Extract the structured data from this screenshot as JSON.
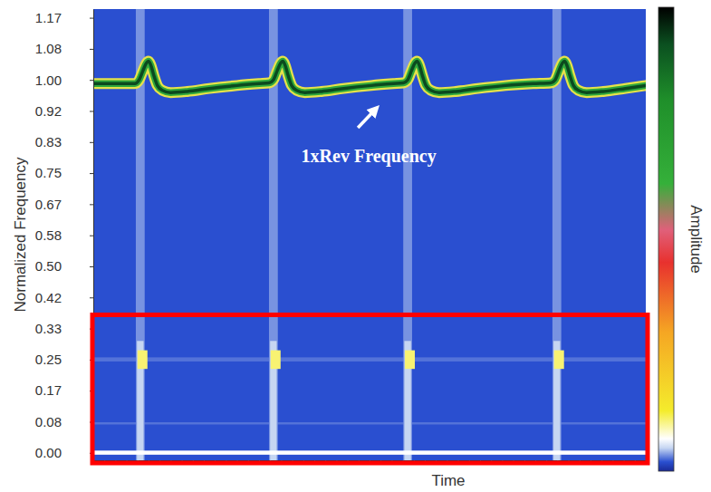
{
  "chart_data": {
    "type": "heatmap",
    "x_label": "Time",
    "y_label": "Normalized Frequency",
    "color_label": "Amplitude",
    "tick_labels": "y",
    "xlim": [
      0,
      100
    ],
    "ylim": [
      -0.02,
      1.19
    ],
    "xticks": [
      0,
      2,
      4,
      6,
      8,
      10,
      12,
      14,
      16,
      18,
      20,
      22,
      24,
      26,
      28,
      30,
      32,
      34,
      36,
      38,
      40,
      42,
      44,
      46,
      48,
      50,
      52,
      54,
      56,
      58,
      60,
      62,
      64,
      66,
      68,
      70,
      72,
      74,
      76,
      78,
      80,
      82,
      84,
      86,
      88,
      90,
      92,
      94,
      96,
      98,
      100
    ],
    "yticks": [
      {
        "value": 0,
        "label": "0.00"
      },
      {
        "value": 0.0833,
        "label": "0.08"
      },
      {
        "value": 0.1667,
        "label": "0.17"
      },
      0.25,
      {
        "value": 0.3333,
        "label": "0.33"
      },
      {
        "value": 0.4167,
        "label": "0.42"
      },
      {
        "value": 0.5,
        "label": "0.50"
      },
      {
        "value": 0.5833,
        "label": "0.58"
      },
      {
        "value": 0.6667,
        "label": "0.67"
      },
      0.75,
      {
        "value": 0.8333,
        "label": "0.83"
      },
      {
        "value": 0.9167,
        "label": "0.92"
      },
      {
        "value": 1,
        "label": "1.00"
      },
      {
        "value": 1.0833,
        "label": "1.08"
      },
      {
        "value": 1.1667,
        "label": "1.17"
      }
    ],
    "color_range": [
      0,
      1
    ],
    "cells": [
      {
        "time": [
          0,
          100
        ],
        "frequency": [
          0.245,
          0.256
        ],
        "amplitude": 0.028
      },
      {
        "time": [
          0,
          100
        ],
        "frequency": [
          0.076,
          0.082
        ],
        "amplitude": 0.028
      },
      {
        "time": [
          7.7,
          9.3
        ],
        "frequency": [
          -0.02,
          1.19
        ],
        "amplitude": 0.035
      },
      {
        "time": [
          31.8,
          33.4
        ],
        "frequency": [
          -0.02,
          1.19
        ],
        "amplitude": 0.035
      },
      {
        "time": [
          56.1,
          57.7
        ],
        "frequency": [
          -0.02,
          1.19
        ],
        "amplitude": 0.035
      },
      {
        "time": [
          83.1,
          84.7
        ],
        "frequency": [
          -0.02,
          1.19
        ],
        "amplitude": 0.035
      },
      {
        "time": [
          7.9,
          9.1
        ],
        "frequency": [
          -0.02,
          0.3
        ],
        "amplitude": 0.05
      },
      {
        "time": [
          32,
          33.2
        ],
        "frequency": [
          -0.02,
          0.3
        ],
        "amplitude": 0.05
      },
      {
        "time": [
          56.3,
          57.5
        ],
        "frequency": [
          -0.02,
          0.3
        ],
        "amplitude": 0.05
      },
      {
        "time": [
          83.3,
          84.5
        ],
        "frequency": [
          -0.02,
          0.3
        ],
        "amplitude": 0.05
      },
      {
        "time": [
          8,
          9.8
        ],
        "frequency": [
          0.225,
          0.275
        ],
        "amplitude": 0.11
      },
      {
        "time": [
          32.1,
          33.9
        ],
        "frequency": [
          0.225,
          0.275
        ],
        "amplitude": 0.11
      },
      {
        "time": [
          56.4,
          58.2
        ],
        "frequency": [
          0.225,
          0.275
        ],
        "amplitude": 0.11
      },
      {
        "time": [
          83.4,
          85.2
        ],
        "frequency": [
          0.225,
          0.275
        ],
        "amplitude": 0.11
      },
      {
        "time": [
          0,
          100
        ],
        "frequency": [
          -0.005,
          0.006
        ],
        "amplitude": 0.07
      }
    ],
    "series": [
      {
        "type": "line",
        "color": "#0b4a1e",
        "x": [
          0,
          7.5,
          8.3,
          9,
          9.6,
          10,
          10.4,
          11,
          11.6,
          12.5,
          14,
          17,
          21,
          26,
          30,
          31.8,
          32.6,
          33.3,
          33.9,
          34.3,
          34.7,
          35.3,
          35.9,
          36.8,
          38.3,
          41.3,
          45.3,
          50.3,
          54.3,
          56.1,
          56.9,
          57.6,
          58.2,
          58.6,
          59,
          59.6,
          60.2,
          61.1,
          62.6,
          65.6,
          69.6,
          74.6,
          79.6,
          82.8,
          83.6,
          84.3,
          84.9,
          85.3,
          85.7,
          86.3,
          86.9,
          87.8,
          89.3,
          92.3,
          96.3,
          100
        ],
        "values": [
          0.99,
          0.99,
          1.0,
          1.025,
          1.045,
          1.05,
          1.04,
          1.01,
          0.985,
          0.972,
          0.966,
          0.969,
          0.977,
          0.985,
          0.99,
          0.992,
          1.0,
          1.025,
          1.045,
          1.05,
          1.04,
          1.01,
          0.985,
          0.972,
          0.966,
          0.969,
          0.977,
          0.985,
          0.99,
          0.992,
          1.0,
          1.025,
          1.045,
          1.05,
          1.04,
          1.01,
          0.985,
          0.972,
          0.966,
          0.969,
          0.977,
          0.985,
          0.99,
          0.992,
          1.0,
          1.025,
          1.045,
          1.05,
          1.04,
          1.01,
          0.985,
          0.972,
          0.966,
          0.969,
          0.977,
          0.985
        ]
      }
    ],
    "annotations": [
      {
        "text": "1xRev Frequency",
        "x": 51.5,
        "y": 0.93
      }
    ],
    "highlight": {
      "yrange": [
        -0.02,
        0.37
      ]
    }
  }
}
